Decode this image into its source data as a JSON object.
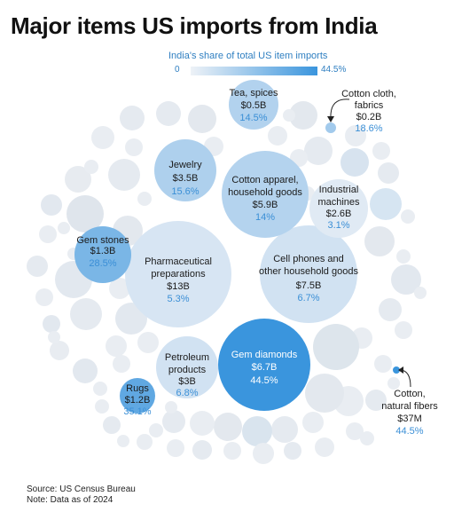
{
  "chart_data": {
    "type": "bubble",
    "title": "Major items US imports from India",
    "legend": {
      "label": "India's share of total US item imports",
      "min_label": "0",
      "max_label": "44.5%",
      "min": 0,
      "max": 44.5
    },
    "labeled_items": [
      {
        "name": "Pharmaceutical preparations",
        "value": "$13B",
        "share_label": "5.3%",
        "share": 5.3
      },
      {
        "name": "Cell phones and other household goods",
        "value": "$7.5B",
        "share_label": "6.7%",
        "share": 6.7
      },
      {
        "name": "Gem diamonds",
        "value": "$6.7B",
        "share_label": "44.5%",
        "share": 44.5
      },
      {
        "name": "Cotton apparel, household goods",
        "value": "$5.9B",
        "share_label": "14%",
        "share": 14
      },
      {
        "name": "Jewelry",
        "value": "$3.5B",
        "share_label": "15.6%",
        "share": 15.6
      },
      {
        "name": "Petroleum products",
        "value": "$3B",
        "share_label": "6.8%",
        "share": 6.8
      },
      {
        "name": "Industrial machines",
        "value": "$2.6B",
        "share_label": "3.1%",
        "share": 3.1
      },
      {
        "name": "Gem stones",
        "value": "$1.3B",
        "share_label": "28.5%",
        "share": 28.5
      },
      {
        "name": "Rugs",
        "value": "$1.2B",
        "share_label": "35.1%",
        "share": 35.1
      },
      {
        "name": "Tea, spices",
        "value": "$0.5B",
        "share_label": "14.5%",
        "share": 14.5
      },
      {
        "name": "Cotton cloth, fabrics",
        "value": "$0.2B",
        "share_label": "18.6%",
        "share": 18.6
      },
      {
        "name": "Cotton, natural fibers",
        "value": "$37M",
        "share_label": "44.5%",
        "share": 44.5
      }
    ]
  },
  "footer": {
    "source": "Source: US Census Bureau",
    "note": "Note: Data as of 2024"
  }
}
